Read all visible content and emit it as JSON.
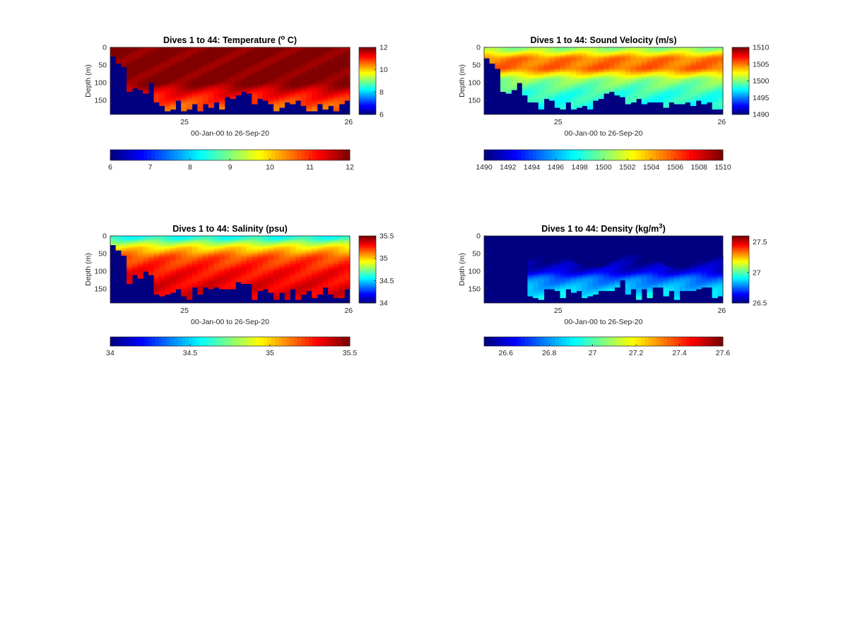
{
  "figure": {
    "background": "#ffffff"
  },
  "chart_data": [
    {
      "type": "heatmap",
      "title": "Dives 1 to 44: Temperature (° C)",
      "title_parts": {
        "pre": "Dives 1 to 44: Temperature (",
        "sup": "o",
        "post": " C)"
      },
      "xlabel": "00-Jan-00 to 26-Sep-20",
      "ylabel": "Depth (m)",
      "x_ticks": [
        "25",
        "26"
      ],
      "y_ticks": [
        "0",
        "50",
        "100",
        "150"
      ],
      "ylim": [
        190,
        0
      ],
      "colormap": "jet",
      "clim": [
        6,
        12
      ],
      "colorbar_ticks": [
        "6",
        "8",
        "10",
        "12"
      ],
      "horizontal_colorbar_ticks": [
        "6",
        "7",
        "8",
        "9",
        "10",
        "11",
        "12"
      ],
      "dives": 44,
      "depth_profile": [
        {
          "depth": 10,
          "value": 12
        },
        {
          "depth": 50,
          "value": 12
        },
        {
          "depth": 100,
          "value": 12
        },
        {
          "depth": 130,
          "value": 11.3
        },
        {
          "depth": 160,
          "value": 10.8
        },
        {
          "depth": 185,
          "value": 10.6
        }
      ],
      "fill_value": 6
    },
    {
      "type": "heatmap",
      "title": "Dives 1 to 44: Sound Velocity (m/s)",
      "title_parts": {
        "pre": "Dives 1 to 44: Sound Velocity (m/s)",
        "sup": "",
        "post": ""
      },
      "xlabel": "00-Jan-00 to 26-Sep-20",
      "ylabel": "Depth (m)",
      "x_ticks": [
        "25",
        "26"
      ],
      "y_ticks": [
        "0",
        "50",
        "100",
        "150"
      ],
      "ylim": [
        190,
        0
      ],
      "colormap": "jet",
      "clim": [
        1490,
        1510
      ],
      "colorbar_ticks": [
        "1490",
        "1495",
        "1500",
        "1505",
        "1510"
      ],
      "horizontal_colorbar_ticks": [
        "1490",
        "1492",
        "1494",
        "1496",
        "1498",
        "1500",
        "1502",
        "1504",
        "1506",
        "1508",
        "1510"
      ],
      "dives": 44,
      "depth_profile": [
        {
          "depth": 5,
          "value": 1500.5
        },
        {
          "depth": 30,
          "value": 1505
        },
        {
          "depth": 60,
          "value": 1505.5
        },
        {
          "depth": 90,
          "value": 1500.5
        },
        {
          "depth": 130,
          "value": 1498.5
        },
        {
          "depth": 185,
          "value": 1497.5
        }
      ],
      "fill_value": 1490
    },
    {
      "type": "heatmap",
      "title": "Dives 1 to 44: Salinity (psu)",
      "title_parts": {
        "pre": "Dives 1 to 44: Salinity (psu)",
        "sup": "",
        "post": ""
      },
      "xlabel": "00-Jan-00 to 26-Sep-20",
      "ylabel": "Depth (m)",
      "x_ticks": [
        "25",
        "26"
      ],
      "y_ticks": [
        "0",
        "50",
        "100",
        "150"
      ],
      "ylim": [
        190,
        0
      ],
      "colormap": "jet",
      "clim": [
        34,
        35.5
      ],
      "colorbar_ticks": [
        "34",
        "34.5",
        "35",
        "35.5"
      ],
      "horizontal_colorbar_ticks": [
        "34",
        "34.5",
        "35",
        "35.5"
      ],
      "dives": 44,
      "depth_profile": [
        {
          "depth": 5,
          "value": 34.6
        },
        {
          "depth": 30,
          "value": 34.95
        },
        {
          "depth": 60,
          "value": 35.2
        },
        {
          "depth": 100,
          "value": 35.3
        },
        {
          "depth": 150,
          "value": 35.35
        },
        {
          "depth": 185,
          "value": 35.35
        }
      ],
      "fill_value": 34
    },
    {
      "type": "heatmap",
      "title": "Dives 1 to 44: Density (kg/m³)",
      "title_parts": {
        "pre": "Dives 1 to 44: Density (kg/m",
        "sup": "3",
        "post": ")"
      },
      "xlabel": "00-Jan-00 to 26-Sep-20",
      "ylabel": "Depth (m)",
      "x_ticks": [
        "25",
        "26"
      ],
      "y_ticks": [
        "0",
        "50",
        "100",
        "150"
      ],
      "ylim": [
        190,
        0
      ],
      "colormap": "jet",
      "clim": [
        26.5,
        27.6
      ],
      "colorbar_ticks": [
        "26.5",
        "27",
        "27.5"
      ],
      "horizontal_colorbar_ticks": [
        "26.6",
        "26.8",
        "27",
        "27.2",
        "27.4",
        "27.6"
      ],
      "dives": 44,
      "depth_profile": [
        {
          "depth": 60,
          "value": 26.5
        },
        {
          "depth": 100,
          "value": 26.6
        },
        {
          "depth": 120,
          "value": 26.75
        },
        {
          "depth": 150,
          "value": 26.85
        },
        {
          "depth": 185,
          "value": 26.95
        }
      ],
      "fill_value": 26.5
    }
  ]
}
